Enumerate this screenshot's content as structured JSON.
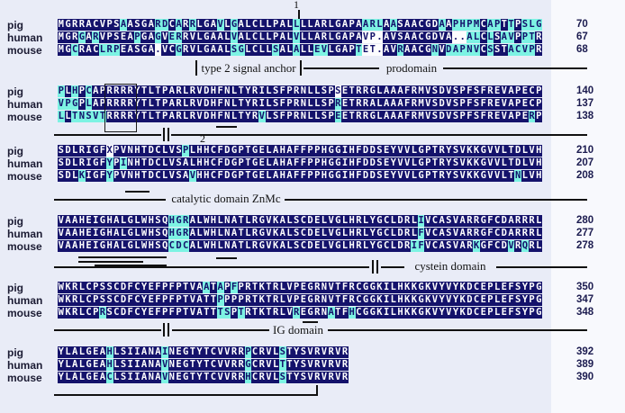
{
  "figure": {
    "type": "multiple-sequence-alignment",
    "species_labels": [
      "pig",
      "human",
      "mouse"
    ],
    "colors": {
      "background": "#e9ecf7",
      "identical_bg": "#14126b",
      "identical_text": "#ffffff",
      "similar_bg": "#7df3e3",
      "different_bg": "#fcfcfe",
      "annotation": "#111111"
    }
  },
  "annotations": {
    "marker_1": "1",
    "marker_2": "2",
    "signal_label": "type 2 signal anchor",
    "prodomain_label": "prodomain",
    "catalytic_label": "catalytic domain ZnMc",
    "cystein_label": "cystein domain",
    "ig_label": "IG domain"
  },
  "alignment": {
    "blocks": [
      {
        "rows": [
          {
            "species": "pig",
            "seq": "MGRRACVPSAASGARDCARRLGAVLGALCLLPALLLLARLGAPAARLAASAACGDAAPHPMCAPTTPSLG",
            "mask": "9d1c4d2c1d1c1d1c3d1c1d1c8d1c9d3c1d1c6d1c1d4c1d2c1d1c1d3c",
            "num": "70"
          },
          {
            "species": "human",
            "seq": "MGRGARVPSEAPGAGVERRVLGAALVALCLLPALVLLARLGAPAVP.AVSAACGDVA..ALCLSAVPPTR",
            "mask": "3d1c1d1c5d1c2d1c1d2c7d1c8d1c9d3w10d2w2c1d1c1d2c1d2c1d",
            "num": "67"
          },
          {
            "species": "mouse",
            "seq": "MGCRACLRPEASGA.VCGRVLGAALSGLCLLSALALLEVLGAPTET.AVRAACGNVDAPNVCSSTACVPR",
            "mask": "2d1c3d3c5d1w2d1c7d2c4d1c2d1c2d2c4d1c3w2d1c4d1c1d5c1d1c2d4c1d",
            "num": "68"
          }
        ]
      },
      {
        "rows": [
          {
            "species": "pig",
            "seq": "PLHPCAPRRRRYTLTPARLRVDHFNLTYRILSFPRNLLSPSETRRGLAAAFRMVSDVSPFSFREVAPECP",
            "mask": "1c1d1c1d1c35d1w29d",
            "num": "140"
          },
          {
            "species": "human",
            "seq": "VPGPLAPRRRRYTLTPARLRVDHFNLTYRILSFPRNLLSPRETRRALAAAFRMVSDVSPFSFREVAPECP",
            "mask": "3c1d1c35d1c29d",
            "num": "137"
          },
          {
            "species": "mouse",
            "seq": "LLTNSVTRRRRYTLTPARLRVDHFNLTYRVLSFPRNLLSPEETRRGLAAAFRMVSDVSPFSFREVAPERP",
            "mask": "1c1d5c22d1c10d1c27d1c1d",
            "num": "138"
          }
        ]
      },
      {
        "rows": [
          {
            "species": "pig",
            "seq": "SDLRIGFXPVNHTDCLVSPLHHCFDGPTGELAHAFFPPHGGIHFDDSEYVVLGPTRYSVKKGVVLTDLVH",
            "mask": "7d1w10d1c51d",
            "num": "210"
          },
          {
            "species": "human",
            "seq": "SDLRIGFYPINHTDCLVSALHHCFDGPTGELAHAFFPPHGGIHFDDSEYVVLGPTRYSVKKGVVLTDLVH",
            "mask": "7d1c1d1c60d",
            "num": "207"
          },
          {
            "species": "mouse",
            "seq": "SDLKIGFYPVNHTDCLVSAVHHCFDGPTGELAHAFFPPHGGIHFDDSEYVVLGPTRYSVKKGVVLTNLVH",
            "mask": "3d1c3d1c11d1c46d1c3d",
            "num": "208"
          }
        ]
      },
      {
        "rows": [
          {
            "species": "pig",
            "seq": "VAAHEIGHALGLWHSQHGRALWHLNATLRGVKALSCDELVGLHRLYGCLDRLIVCASVARRGFCDARRRL",
            "mask": "16d3c33d1c17d",
            "num": "280"
          },
          {
            "species": "human",
            "seq": "VAAHEIGHALGLWHSQHGRALWHLNATLRGVKALSCDELVGLHRLYGCLDRLFVCASVARRGFCDARRRL",
            "mask": "16d3c33d1c17d",
            "num": "277"
          },
          {
            "species": "mouse",
            "seq": "VAAHEIGHALGLWHSQCDCALWHLNATLRGVKALSCDELVGLHRLYGCLDRIFVCASVARKGFCDVRQRL",
            "mask": "16d3c32d2c7d1c4d1c1d1c2d",
            "num": "278"
          }
        ]
      },
      {
        "rows": [
          {
            "species": "pig",
            "seq": "WKRLCPSSCDFCYEFPFPTVAATAPFPRTKTRLVPEGRNVTFRCGGKILHKKGKVYVYKDCEPLEFSYPG",
            "mask": "21d1c1d1c1d1c44d",
            "num": "350"
          },
          {
            "species": "human",
            "seq": "WKRLCPSSCDFCYEFPFPTVATTPPPPRTKTRLVPEGRNVTFRCGGKILHKKGKVYVYKDCEPLEFSYPG",
            "mask": "23d1c46d",
            "num": "347"
          },
          {
            "species": "mouse",
            "seq": "WKRLCPRSCDFCYEFPFPTVATTTSPTRTKTRLVREGRNATFHCGGKILHKKGKVYVYKDCEPLEFSYPG",
            "mask": "6d1c16d2c1d1c7d1c4d1c2d1c27d",
            "num": "348"
          }
        ]
      },
      {
        "rows": [
          {
            "species": "pig",
            "seq": "YLALGEAHLSIIANAINEGTYTCVVRRPCRVLSTYSVRVRVR",
            "mask": "7d1c7d1c11d1c4d1c9d",
            "num": "392"
          },
          {
            "species": "human",
            "seq": "YLALGEAHLSIIANAVNEGTYTCVVRRGCRVLTTYSVRVRVR",
            "mask": "7d1c7d1c11d1c4d1c9d",
            "num": "389"
          },
          {
            "species": "mouse",
            "seq": "YLALGEACLSIIANAVNEGTYTCVVRRHCRVLSTYSVRVRVR",
            "mask": "7d1c7d1c11d1c4d1c9d",
            "num": "390"
          }
        ]
      }
    ]
  }
}
